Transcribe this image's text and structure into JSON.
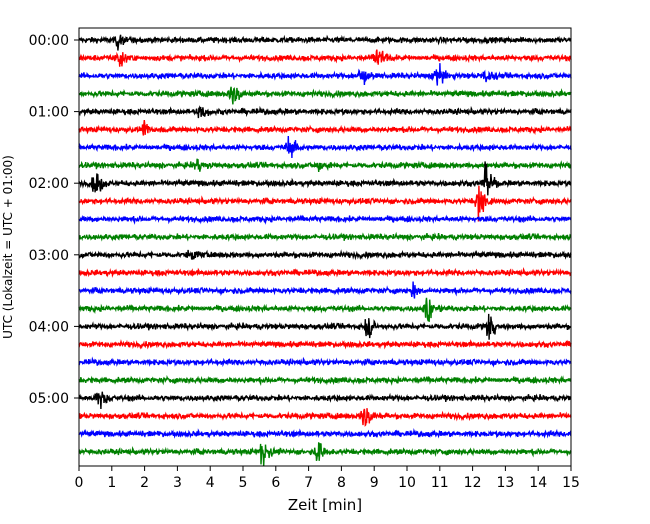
{
  "chart_data": {
    "type": "line",
    "title": "",
    "xlabel": "Zeit  [min]",
    "ylabel": "UTC (Lokalzeit = UTC + 01:00)",
    "xlim": [
      0,
      15
    ],
    "x_ticks": [
      "0",
      "1",
      "2",
      "3",
      "4",
      "5",
      "6",
      "7",
      "8",
      "9",
      "10",
      "11",
      "12",
      "13",
      "14",
      "15"
    ],
    "y_ticks": [
      "00:00",
      "01:00",
      "02:00",
      "03:00",
      "04:00",
      "05:00"
    ],
    "trace_interval_minutes": 15,
    "grid": true,
    "series_colors": [
      "#000000",
      "#ff0000",
      "#0000ff",
      "#008000"
    ],
    "traces": [
      {
        "start": "00:00",
        "color": "#000000",
        "noise": 0.35,
        "events": [
          {
            "t": 1.2,
            "amp": 1.0
          }
        ]
      },
      {
        "start": "00:15",
        "color": "#ff0000",
        "noise": 0.35,
        "events": [
          {
            "t": 1.2,
            "amp": 2.0
          },
          {
            "t": 9.1,
            "amp": 1.6
          }
        ]
      },
      {
        "start": "00:30",
        "color": "#0000ff",
        "noise": 0.35,
        "events": [
          {
            "t": 8.6,
            "amp": 1.2
          },
          {
            "t": 10.9,
            "amp": 1.3
          },
          {
            "t": 12.4,
            "amp": 1.1
          }
        ]
      },
      {
        "start": "00:45",
        "color": "#008000",
        "noise": 0.35,
        "events": [
          {
            "t": 4.7,
            "amp": 1.8
          }
        ]
      },
      {
        "start": "01:00",
        "color": "#000000",
        "noise": 0.35,
        "events": [
          {
            "t": 3.7,
            "amp": 1.2
          }
        ]
      },
      {
        "start": "01:15",
        "color": "#ff0000",
        "noise": 0.35,
        "events": [
          {
            "t": 2.0,
            "amp": 0.8
          }
        ]
      },
      {
        "start": "01:30",
        "color": "#0000ff",
        "noise": 0.35,
        "events": [
          {
            "t": 6.4,
            "amp": 1.4
          }
        ]
      },
      {
        "start": "01:45",
        "color": "#008000",
        "noise": 0.35,
        "events": [
          {
            "t": 3.6,
            "amp": 0.8
          },
          {
            "t": 7.3,
            "amp": 0.9
          }
        ]
      },
      {
        "start": "02:00",
        "color": "#000000",
        "noise": 0.35,
        "events": [
          {
            "t": 0.5,
            "amp": 1.6
          },
          {
            "t": 12.4,
            "amp": 1.9
          }
        ]
      },
      {
        "start": "02:15",
        "color": "#ff0000",
        "noise": 0.35,
        "events": [
          {
            "t": 12.2,
            "amp": 2.2
          }
        ]
      },
      {
        "start": "02:30",
        "color": "#0000ff",
        "noise": 0.35,
        "events": []
      },
      {
        "start": "02:45",
        "color": "#008000",
        "noise": 0.35,
        "events": []
      },
      {
        "start": "03:00",
        "color": "#000000",
        "noise": 0.35,
        "events": [
          {
            "t": 3.4,
            "amp": 0.7
          }
        ]
      },
      {
        "start": "03:15",
        "color": "#ff0000",
        "noise": 0.35,
        "events": []
      },
      {
        "start": "03:30",
        "color": "#0000ff",
        "noise": 0.35,
        "events": [
          {
            "t": 10.2,
            "amp": 1.0
          }
        ]
      },
      {
        "start": "03:45",
        "color": "#008000",
        "noise": 0.35,
        "events": [
          {
            "t": 10.6,
            "amp": 1.8
          }
        ]
      },
      {
        "start": "04:00",
        "color": "#000000",
        "noise": 0.35,
        "events": [
          {
            "t": 8.8,
            "amp": 1.5
          },
          {
            "t": 12.5,
            "amp": 1.4
          }
        ]
      },
      {
        "start": "04:15",
        "color": "#ff0000",
        "noise": 0.35,
        "events": []
      },
      {
        "start": "04:30",
        "color": "#0000ff",
        "noise": 0.35,
        "events": []
      },
      {
        "start": "04:45",
        "color": "#008000",
        "noise": 0.35,
        "events": []
      },
      {
        "start": "05:00",
        "color": "#000000",
        "noise": 0.35,
        "events": [
          {
            "t": 0.6,
            "amp": 1.8
          }
        ]
      },
      {
        "start": "05:15",
        "color": "#ff0000",
        "noise": 0.35,
        "events": [
          {
            "t": 8.7,
            "amp": 2.0
          }
        ]
      },
      {
        "start": "05:30",
        "color": "#0000ff",
        "noise": 0.35,
        "events": []
      },
      {
        "start": "05:45",
        "color": "#008000",
        "noise": 0.35,
        "events": [
          {
            "t": 5.6,
            "amp": 1.7
          },
          {
            "t": 7.3,
            "amp": 1.6
          }
        ]
      }
    ]
  }
}
